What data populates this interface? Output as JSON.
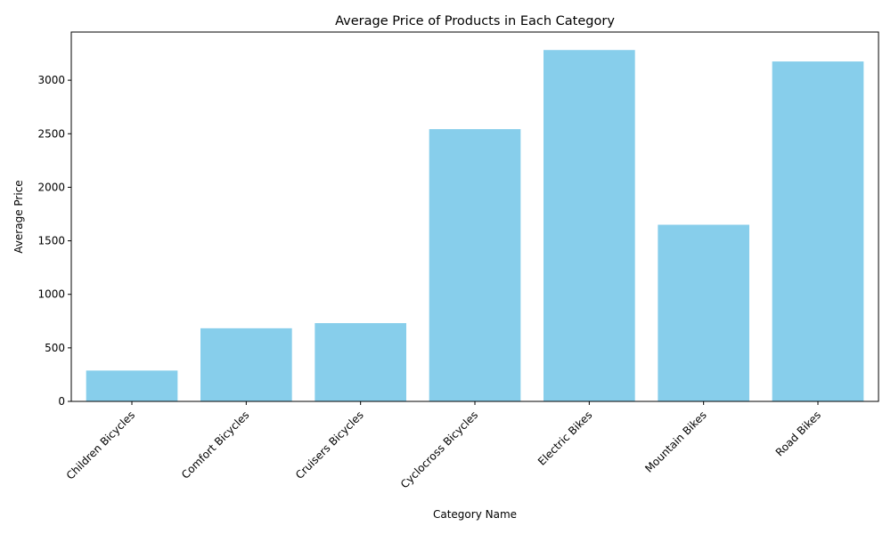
{
  "chart_data": {
    "type": "bar",
    "title": "Average Price of Products in Each Category",
    "xlabel": "Category Name",
    "ylabel": "Average Price",
    "categories": [
      "Children Bicycles",
      "Comfort Bicycles",
      "Cruisers Bicycles",
      "Cyclocross Bicycles",
      "Electric Bikes",
      "Mountain Bikes",
      "Road Bikes"
    ],
    "values": [
      288,
      683,
      731,
      2543,
      3282,
      1650,
      3175
    ],
    "ylim": [
      0,
      3450
    ],
    "yticks": [
      0,
      500,
      1000,
      1500,
      2000,
      2500,
      3000
    ],
    "bar_color": "#87ceeb",
    "grid": false,
    "x_tick_rotation_deg": 45
  }
}
